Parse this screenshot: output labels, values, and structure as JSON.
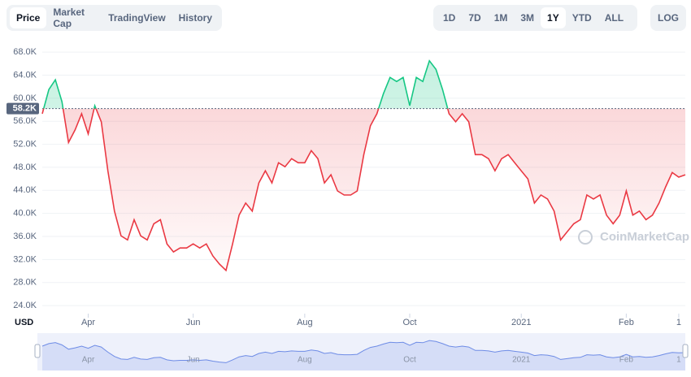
{
  "tabs": [
    "Price",
    "Market Cap",
    "TradingView",
    "History"
  ],
  "ranges": [
    "1D",
    "7D",
    "1M",
    "3M",
    "1Y",
    "YTD",
    "ALL"
  ],
  "log_button": "LOG",
  "chart_data": {
    "type": "line",
    "currency_label": "USD",
    "watermark": "CoinMarketCap",
    "values": [
      57300,
      61500,
      63200,
      59400,
      52300,
      54500,
      57300,
      53800,
      58700,
      55900,
      47400,
      40400,
      36100,
      35400,
      38900,
      36100,
      35400,
      38200,
      38900,
      34700,
      33300,
      34000,
      34000,
      34700,
      34000,
      34700,
      32600,
      31200,
      30100,
      34700,
      39700,
      41800,
      40400,
      45300,
      47400,
      45300,
      48800,
      48100,
      49500,
      48800,
      48800,
      50900,
      49500,
      45300,
      46700,
      43900,
      43200,
      43200,
      43900,
      50200,
      55200,
      57300,
      60800,
      63600,
      62900,
      63600,
      58700,
      63600,
      62900,
      66500,
      65000,
      61500,
      57300,
      55900,
      57300,
      55900,
      50200,
      50200,
      49500,
      47400,
      49500,
      50200,
      48800,
      47400,
      46000,
      41800,
      43200,
      42500,
      40400,
      35400,
      36800,
      38200,
      38900,
      43200,
      42500,
      43200,
      39700,
      38200,
      39700,
      43900,
      39700,
      40400,
      38900,
      39700,
      41800,
      44600,
      47100,
      46300,
      46700
    ],
    "reference": {
      "value": 58200,
      "label": "58.2K"
    },
    "up_color": "#16c784",
    "down_color": "#ea3943",
    "ylim": [
      22600,
      70700
    ],
    "yticks": [
      {
        "value": 24000,
        "label": "24.0K"
      },
      {
        "value": 28000,
        "label": "28.0K"
      },
      {
        "value": 32000,
        "label": "32.0K"
      },
      {
        "value": 36000,
        "label": "36.0K"
      },
      {
        "value": 40000,
        "label": "40.0K"
      },
      {
        "value": 44000,
        "label": "44.0K"
      },
      {
        "value": 48000,
        "label": "48.0K"
      },
      {
        "value": 52000,
        "label": "52.0K"
      },
      {
        "value": 56000,
        "label": "56.0K"
      },
      {
        "value": 60000,
        "label": "60.0K"
      },
      {
        "value": 64000,
        "label": "64.0K"
      },
      {
        "value": 68000,
        "label": "68.0K"
      }
    ],
    "xticks": [
      {
        "value": 7,
        "label": "Apr"
      },
      {
        "value": 23,
        "label": "Jun"
      },
      {
        "value": 40,
        "label": "Aug"
      },
      {
        "value": 56,
        "label": "Oct"
      },
      {
        "value": 73,
        "label": "2021"
      },
      {
        "value": 89,
        "label": "Feb"
      },
      {
        "value": 97,
        "label": "1"
      }
    ],
    "grid": true
  }
}
